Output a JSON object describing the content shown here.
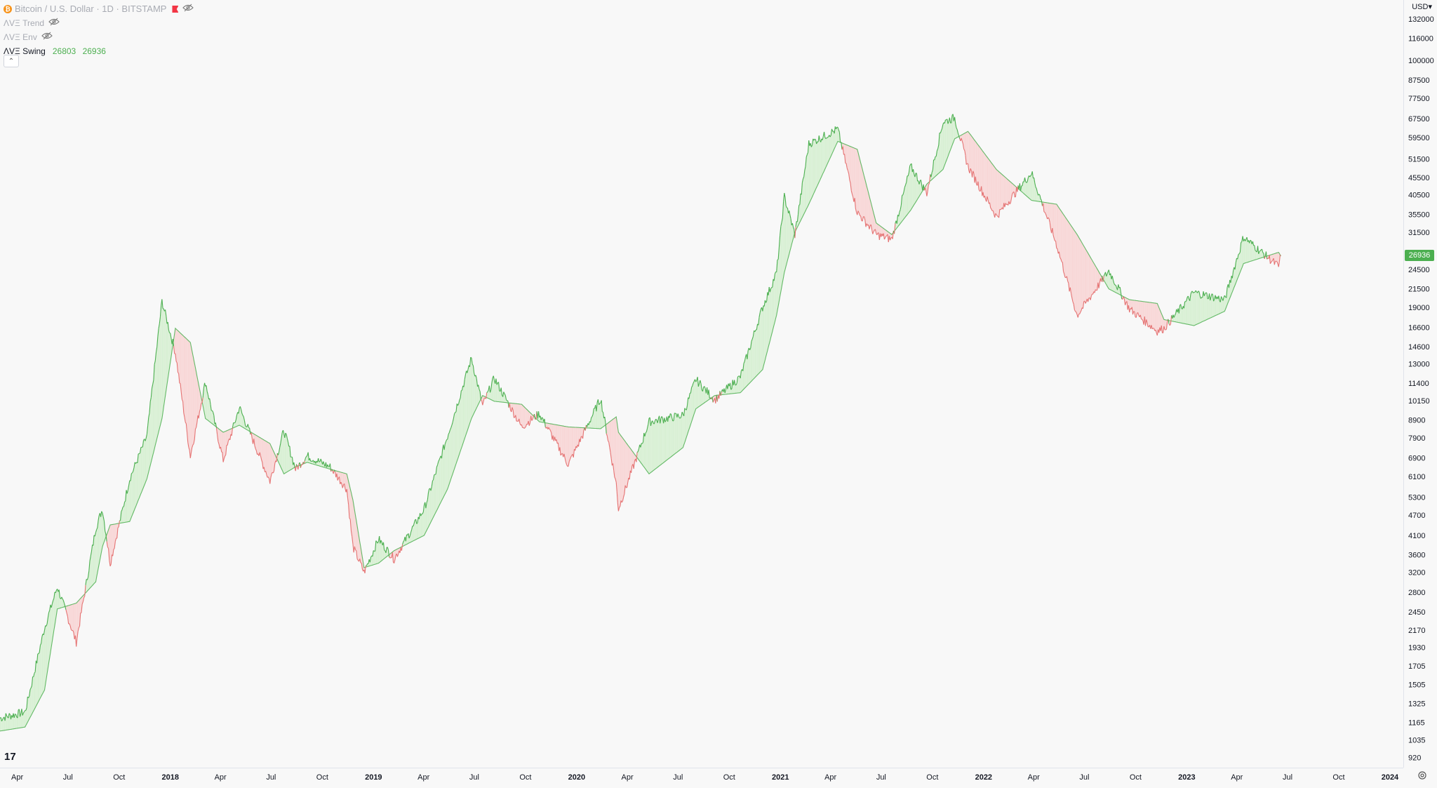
{
  "header": {
    "symbol": "Bitcoin / U.S. Dollar · 1D · BITSTAMP",
    "btc_glyph": "₿"
  },
  "indicators": [
    {
      "name": "ΛVΞ Trend",
      "hidden": true
    },
    {
      "name": "ΛVΞ Env",
      "hidden": true
    },
    {
      "name": "ΛVΞ Swing",
      "hidden": false,
      "values": [
        "26803",
        "26936"
      ]
    }
  ],
  "price_axis": {
    "currency": "USD",
    "ticks": [
      "132000",
      "116000",
      "100000",
      "87500",
      "77500",
      "67500",
      "59500",
      "51500",
      "45500",
      "40500",
      "35500",
      "31500",
      "27500",
      "24500",
      "21500",
      "19000",
      "16600",
      "14600",
      "13000",
      "11400",
      "10150",
      "8900",
      "7900",
      "6900",
      "6100",
      "5300",
      "4700",
      "4100",
      "3600",
      "3200",
      "2800",
      "2450",
      "2170",
      "1930",
      "1705",
      "1505",
      "1325",
      "1165",
      "1035",
      "920"
    ],
    "last_price": "26936"
  },
  "time_axis": {
    "ticks": [
      {
        "label": "Apr",
        "bold": false
      },
      {
        "label": "Jul",
        "bold": false
      },
      {
        "label": "Oct",
        "bold": false
      },
      {
        "label": "2018",
        "bold": true
      },
      {
        "label": "Apr",
        "bold": false
      },
      {
        "label": "Jul",
        "bold": false
      },
      {
        "label": "Oct",
        "bold": false
      },
      {
        "label": "2019",
        "bold": true
      },
      {
        "label": "Apr",
        "bold": false
      },
      {
        "label": "Jul",
        "bold": false
      },
      {
        "label": "Oct",
        "bold": false
      },
      {
        "label": "2020",
        "bold": true
      },
      {
        "label": "Apr",
        "bold": false
      },
      {
        "label": "Jul",
        "bold": false
      },
      {
        "label": "Oct",
        "bold": false
      },
      {
        "label": "2021",
        "bold": true
      },
      {
        "label": "Apr",
        "bold": false
      },
      {
        "label": "Jul",
        "bold": false
      },
      {
        "label": "Oct",
        "bold": false
      },
      {
        "label": "2022",
        "bold": true
      },
      {
        "label": "Apr",
        "bold": false
      },
      {
        "label": "Jul",
        "bold": false
      },
      {
        "label": "Oct",
        "bold": false
      },
      {
        "label": "2023",
        "bold": true
      },
      {
        "label": "Apr",
        "bold": false
      },
      {
        "label": "Jul",
        "bold": false
      },
      {
        "label": "Oct",
        "bold": false
      },
      {
        "label": "2024",
        "bold": true
      }
    ]
  },
  "colors": {
    "up": "#4caf50",
    "down": "#e57373",
    "up_fill": "#d8f0d4",
    "down_fill": "#f8d7d7"
  },
  "chart_data": {
    "type": "line",
    "scale": "log",
    "ylim": [
      860,
      150000
    ],
    "xlim": [
      "2017-03-01",
      "2024-01-25"
    ],
    "x": [
      "2017-03-01",
      "2017-04-15",
      "2017-05-20",
      "2017-06-12",
      "2017-07-16",
      "2017-08-20",
      "2017-09-01",
      "2017-09-15",
      "2017-10-20",
      "2017-11-20",
      "2017-12-17",
      "2018-01-10",
      "2018-02-06",
      "2018-03-05",
      "2018-04-06",
      "2018-05-05",
      "2018-06-29",
      "2018-07-24",
      "2018-08-14",
      "2018-09-04",
      "2018-10-15",
      "2018-11-14",
      "2018-11-25",
      "2018-12-15",
      "2019-01-10",
      "2019-02-07",
      "2019-04-02",
      "2019-05-14",
      "2019-06-26",
      "2019-07-16",
      "2019-08-06",
      "2019-09-24",
      "2019-10-26",
      "2019-12-17",
      "2020-02-13",
      "2020-03-12",
      "2020-03-16",
      "2020-05-10",
      "2020-07-10",
      "2020-08-02",
      "2020-09-05",
      "2020-10-21",
      "2020-11-30",
      "2020-12-25",
      "2021-01-08",
      "2021-01-27",
      "2021-02-21",
      "2021-04-14",
      "2021-05-19",
      "2021-06-22",
      "2021-07-20",
      "2021-08-23",
      "2021-09-21",
      "2021-10-20",
      "2021-11-10",
      "2021-12-04",
      "2022-01-24",
      "2022-03-28",
      "2022-05-12",
      "2022-06-18",
      "2022-08-14",
      "2022-09-20",
      "2022-11-09",
      "2022-11-21",
      "2023-01-14",
      "2023-03-10",
      "2023-04-13",
      "2023-06-15",
      "2023-06-19"
    ],
    "price": [
      1200,
      1250,
      2200,
      2900,
      2000,
      4300,
      4900,
      3400,
      6000,
      8000,
      19800,
      14000,
      7000,
      11500,
      6800,
      9700,
      5900,
      8300,
      6400,
      7000,
      6500,
      5600,
      3800,
      3200,
      4000,
      3500,
      4900,
      8000,
      13500,
      9800,
      11800,
      8500,
      9300,
      6600,
      10300,
      5800,
      4900,
      8800,
      9200,
      11700,
      10200,
      11900,
      19000,
      24000,
      40000,
      31000,
      57000,
      63000,
      36000,
      31000,
      30000,
      49000,
      41000,
      66000,
      68000,
      49000,
      35000,
      47000,
      29000,
      18000,
      24300,
      18800,
      16200,
      16500,
      21000,
      20000,
      30500,
      25000,
      26936
    ],
    "swing": [
      1100,
      1130,
      1450,
      2500,
      2600,
      3000,
      3800,
      4400,
      4500,
      6000,
      9000,
      16500,
      15000,
      9000,
      8200,
      8600,
      7600,
      6200,
      6500,
      6700,
      6400,
      6200,
      5200,
      3300,
      3400,
      3700,
      4100,
      5600,
      9000,
      10500,
      10100,
      9900,
      8800,
      8500,
      8400,
      9100,
      8200,
      6200,
      7400,
      9600,
      10500,
      10700,
      12500,
      18000,
      24000,
      31500,
      38000,
      58000,
      55000,
      33500,
      31000,
      36500,
      43500,
      48000,
      59000,
      62000,
      48000,
      39000,
      38000,
      31000,
      21500,
      20000,
      19500,
      17500,
      16800,
      18500,
      25500,
      27500,
      26803
    ]
  }
}
